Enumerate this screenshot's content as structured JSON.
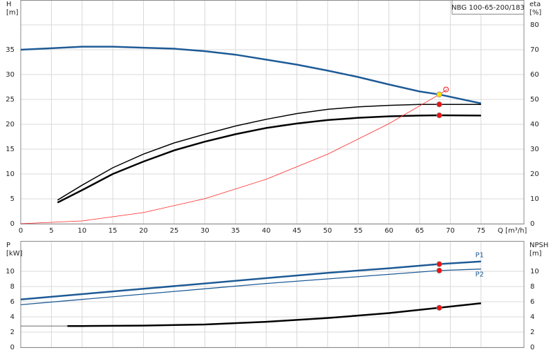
{
  "chart_data": [
    {
      "type": "line",
      "title": "NBG 100-65-200/183",
      "ylabel": "H",
      "yunit": "[m]",
      "y2label": "eta",
      "y2unit": "[%]",
      "xlabel": "Q [m³/h]",
      "xlim": [
        0,
        82
      ],
      "xticks": [
        0,
        5,
        10,
        15,
        20,
        25,
        30,
        35,
        40,
        45,
        50,
        55,
        60,
        65,
        70,
        75
      ],
      "xtick_labels": true,
      "ylim": [
        0,
        45
      ],
      "yticks": [
        0,
        5,
        10,
        15,
        20,
        25,
        30,
        35
      ],
      "y2lim": [
        0,
        90
      ],
      "y2ticks": [
        0,
        10,
        20,
        30,
        40,
        50,
        60,
        70,
        80
      ],
      "grid": true,
      "series": [
        {
          "x": [
            0,
            5,
            10,
            15,
            20,
            25,
            30,
            35,
            40,
            45,
            50,
            55,
            60,
            65,
            68.2,
            75
          ],
          "values": [
            35,
            35.3,
            35.6,
            35.6,
            35.4,
            35.2,
            34.7,
            34,
            33,
            32,
            30.8,
            29.5,
            28,
            26.6,
            26,
            24.2
          ],
          "axis": "y",
          "color": "#1d5a96",
          "width": 2.5,
          "line": true
        },
        {
          "x": [
            6,
            10,
            15,
            20,
            25,
            30,
            35,
            40,
            45,
            50,
            55,
            60,
            65,
            68.2,
            75
          ],
          "values": [
            9.5,
            15.5,
            22.5,
            28,
            32.5,
            36,
            39.3,
            42,
            44.3,
            46,
            47,
            47.6,
            48,
            48,
            48
          ],
          "axis": "y2",
          "color": "#000000",
          "width": 1.5,
          "line": true
        },
        {
          "x": [
            6,
            10,
            15,
            20,
            25,
            30,
            35,
            40,
            45,
            50,
            55,
            60,
            65,
            68.2,
            75
          ],
          "values": [
            8.5,
            13.5,
            20,
            25,
            29.5,
            33,
            36,
            38.5,
            40.3,
            41.7,
            42.6,
            43.2,
            43.5,
            43.6,
            43.5
          ],
          "axis": "y2",
          "color": "#000000",
          "width": 2.5,
          "line": true
        },
        {
          "x": [
            0,
            10,
            20,
            30,
            40,
            50,
            60,
            68.2,
            69.5
          ],
          "values": [
            0,
            0.56,
            2.24,
            5.03,
            8.94,
            13.97,
            20.12,
            26,
            27
          ],
          "axis": "y",
          "color": "#ff2020",
          "width": 0.8,
          "line": true
        },
        {
          "x": [
            68.2
          ],
          "values": [
            26
          ],
          "axis": "y",
          "color": "#ffe000",
          "line": false,
          "marker": "dot"
        },
        {
          "x": [
            68.2,
            68.2
          ],
          "values": [
            48,
            43.6
          ],
          "axis": "y2",
          "color": "#ee1111",
          "line": false,
          "marker": "dot"
        },
        {
          "x": [
            69.3
          ],
          "values": [
            27
          ],
          "axis": "y",
          "color": "#ee1111",
          "line": false,
          "marker": "ring"
        }
      ]
    },
    {
      "type": "line",
      "ylabel": "P",
      "yunit": "[kW]",
      "y2label": "NPSH",
      "y2unit": "[m]",
      "xlim": [
        0,
        82
      ],
      "xticks": [
        0,
        5,
        10,
        15,
        20,
        25,
        30,
        35,
        40,
        45,
        50,
        55,
        60,
        65,
        70,
        75
      ],
      "xtick_labels": false,
      "ylim": [
        0,
        14
      ],
      "yticks": [
        0,
        2,
        4,
        6,
        8,
        10
      ],
      "y2lim": [
        0,
        14
      ],
      "y2ticks": [
        0,
        2,
        4,
        6,
        8,
        10
      ],
      "grid": true,
      "series": [
        {
          "name": "P1",
          "label_side": "above",
          "x": [
            0,
            10,
            20,
            30,
            40,
            50,
            60,
            68.2,
            75
          ],
          "values": [
            6.3,
            7,
            7.7,
            8.4,
            9.1,
            9.8,
            10.4,
            10.95,
            11.3
          ],
          "axis": "y",
          "color": "#1d5a96",
          "width": 2.5,
          "line": true
        },
        {
          "name": "P2",
          "label_side": "below",
          "x": [
            0,
            10,
            20,
            30,
            40,
            50,
            60,
            68.2,
            75
          ],
          "values": [
            5.6,
            6.3,
            7,
            7.7,
            8.4,
            9,
            9.6,
            10.1,
            10.3
          ],
          "axis": "y",
          "color": "#1d5a96",
          "width": 1.3,
          "line": true
        },
        {
          "x": [
            7.6,
            10,
            20,
            30,
            40,
            50,
            60,
            68.2,
            75
          ],
          "values": [
            2.8,
            2.8,
            2.85,
            3,
            3.35,
            3.85,
            4.5,
            5.2,
            5.8
          ],
          "axis": "y2",
          "color": "#000000",
          "width": 2.5,
          "line": true
        },
        {
          "x": [
            0,
            7.6
          ],
          "values": [
            2.8,
            2.8
          ],
          "axis": "y2",
          "color": "#555555",
          "width": 0.8,
          "line": true
        },
        {
          "x": [
            68.2,
            68.2
          ],
          "values": [
            10.95,
            10.1
          ],
          "axis": "y",
          "color": "#ee1111",
          "line": false,
          "marker": "dot"
        },
        {
          "x": [
            68.2
          ],
          "values": [
            5.2
          ],
          "axis": "y2",
          "color": "#ee1111",
          "line": false,
          "marker": "dot"
        }
      ]
    }
  ]
}
